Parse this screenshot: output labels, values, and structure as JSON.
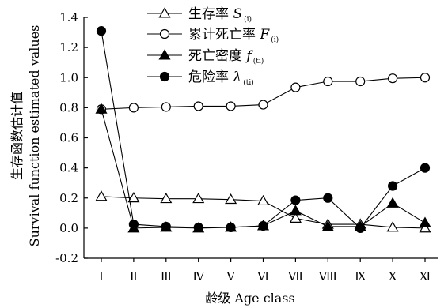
{
  "chart_data": {
    "type": "line",
    "title": "",
    "xlabel": "龄级 Age class",
    "ylabel_cn": "生存函数估计值",
    "ylabel_en": "Survival function estimated values",
    "categories": [
      "Ⅰ",
      "Ⅱ",
      "Ⅲ",
      "Ⅳ",
      "Ⅴ",
      "Ⅵ",
      "Ⅶ",
      "Ⅷ",
      "Ⅸ",
      "Ⅹ",
      "Ⅺ"
    ],
    "ylim": [
      -0.2,
      1.4
    ],
    "yticks": [
      -0.2,
      0.0,
      0.2,
      0.4,
      0.6,
      0.8,
      1.0,
      1.2,
      1.4
    ],
    "ytick_labels": [
      "-0.2",
      "0.0",
      "0.2",
      "0.4",
      "0.6",
      "0.8",
      "1.0",
      "1.2",
      "1.4"
    ],
    "grid": false,
    "legend_position": "top-center",
    "series": [
      {
        "key": "survival",
        "label": "生存率",
        "symbol": "S",
        "subscript": "(i)",
        "marker": "open-triangle",
        "values": [
          0.21,
          0.2,
          0.195,
          0.195,
          0.19,
          0.18,
          0.065,
          0.025,
          0.025,
          0.005,
          0.0
        ]
      },
      {
        "key": "cumulative_mortality",
        "label": "累计死亡率",
        "symbol": "F",
        "subscript": "(i)",
        "marker": "open-circle",
        "values": [
          0.79,
          0.8,
          0.805,
          0.81,
          0.81,
          0.82,
          0.935,
          0.975,
          0.975,
          0.995,
          1.0
        ]
      },
      {
        "key": "mortality_density",
        "label": "死亡密度",
        "symbol": "f",
        "subscript": "(ti)",
        "marker": "filled-triangle",
        "values": [
          0.79,
          0.0,
          0.005,
          0.0,
          0.005,
          0.015,
          0.115,
          0.01,
          0.01,
          0.165,
          0.035
        ]
      },
      {
        "key": "hazard_rate",
        "label": "危险率",
        "symbol": "λ",
        "subscript": "(ti)",
        "marker": "filled-circle",
        "values": [
          1.31,
          0.025,
          0.01,
          0.005,
          0.005,
          0.015,
          0.185,
          0.2,
          0.0,
          0.28,
          0.4
        ]
      }
    ]
  }
}
